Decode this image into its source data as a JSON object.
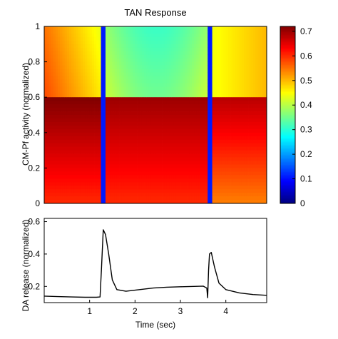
{
  "chart_data": [
    {
      "type": "heatmap",
      "title": "TAN Response",
      "xlabel": "",
      "ylabel": "CM-Pf activity (normalized)",
      "xlim": [
        0,
        4.9
      ],
      "ylim": [
        0,
        1
      ],
      "yticks": [
        0,
        0.2,
        0.4,
        0.6,
        0.8,
        1
      ],
      "ytick_labels": [
        "0",
        "0.2",
        "0.4",
        "0.6",
        "0.8",
        "1"
      ],
      "colormap": "jet",
      "colorbar": {
        "range": [
          0,
          0.72
        ],
        "ticks": [
          0,
          0.1,
          0.2,
          0.3,
          0.4,
          0.5,
          0.6,
          0.7
        ],
        "tick_labels": [
          "0",
          "0.1",
          "0.2",
          "0.3",
          "0.4",
          "0.5",
          "0.6",
          "0.7"
        ]
      },
      "threshold_y": 0.6,
      "dips": [
        1.3,
        3.65
      ],
      "grid": false
    },
    {
      "type": "line",
      "title": "",
      "xlabel": "Time (sec)",
      "ylabel": "DA release (normalized)",
      "xlim": [
        0,
        4.9
      ],
      "ylim": [
        0.1,
        0.62
      ],
      "xticks": [
        1,
        2,
        3,
        4
      ],
      "xtick_labels": [
        "1",
        "2",
        "3",
        "4"
      ],
      "yticks": [
        0.2,
        0.4,
        0.6
      ],
      "ytick_labels": [
        "0.2",
        "0.4",
        "0.6"
      ],
      "series": [
        {
          "color": "#000000",
          "x": [
            0,
            0.3,
            0.6,
            0.9,
            1.15,
            1.23,
            1.26,
            1.3,
            1.35,
            1.42,
            1.5,
            1.6,
            1.8,
            2.1,
            2.4,
            2.7,
            3.0,
            3.3,
            3.5,
            3.58,
            3.6,
            3.62,
            3.64,
            3.68,
            3.75,
            3.85,
            4.0,
            4.3,
            4.6,
            4.9
          ],
          "y": [
            0.14,
            0.137,
            0.135,
            0.133,
            0.133,
            0.135,
            0.3,
            0.55,
            0.52,
            0.4,
            0.24,
            0.18,
            0.17,
            0.18,
            0.19,
            0.195,
            0.198,
            0.2,
            0.202,
            0.19,
            0.13,
            0.3,
            0.4,
            0.41,
            0.32,
            0.22,
            0.18,
            0.16,
            0.15,
            0.145
          ]
        }
      ],
      "grid": false
    }
  ]
}
